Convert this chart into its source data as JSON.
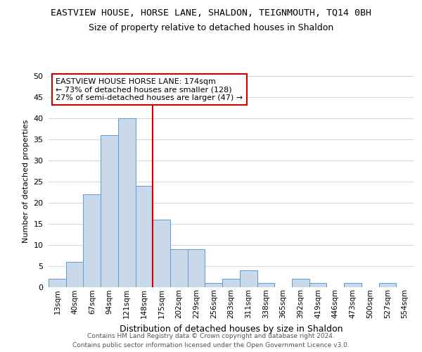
{
  "title1": "EASTVIEW HOUSE, HORSE LANE, SHALDON, TEIGNMOUTH, TQ14 0BH",
  "title2": "Size of property relative to detached houses in Shaldon",
  "xlabel": "Distribution of detached houses by size in Shaldon",
  "ylabel": "Number of detached properties",
  "footer1": "Contains HM Land Registry data © Crown copyright and database right 2024.",
  "footer2": "Contains public sector information licensed under the Open Government Licence v3.0.",
  "bin_labels": [
    "13sqm",
    "40sqm",
    "67sqm",
    "94sqm",
    "121sqm",
    "148sqm",
    "175sqm",
    "202sqm",
    "229sqm",
    "256sqm",
    "283sqm",
    "311sqm",
    "338sqm",
    "365sqm",
    "392sqm",
    "419sqm",
    "446sqm",
    "473sqm",
    "500sqm",
    "527sqm",
    "554sqm"
  ],
  "bar_values": [
    2,
    6,
    22,
    36,
    40,
    24,
    16,
    9,
    9,
    1,
    2,
    4,
    1,
    0,
    2,
    1,
    0,
    1,
    0,
    1,
    0
  ],
  "bar_color": "#c9d9ea",
  "bar_edgecolor": "#5b9bd5",
  "annotation_text": "EASTVIEW HOUSE HORSE LANE: 174sqm\n← 73% of detached houses are smaller (128)\n27% of semi-detached houses are larger (47) →",
  "annotation_box_color": "#ffffff",
  "annotation_box_edgecolor": "#cc0000",
  "vline_color": "#cc0000",
  "vline_index": 6,
  "ylim": [
    0,
    50
  ],
  "background_color": "#ffffff",
  "plot_bg_color": "#ffffff",
  "grid_color": "#d0d8e0"
}
